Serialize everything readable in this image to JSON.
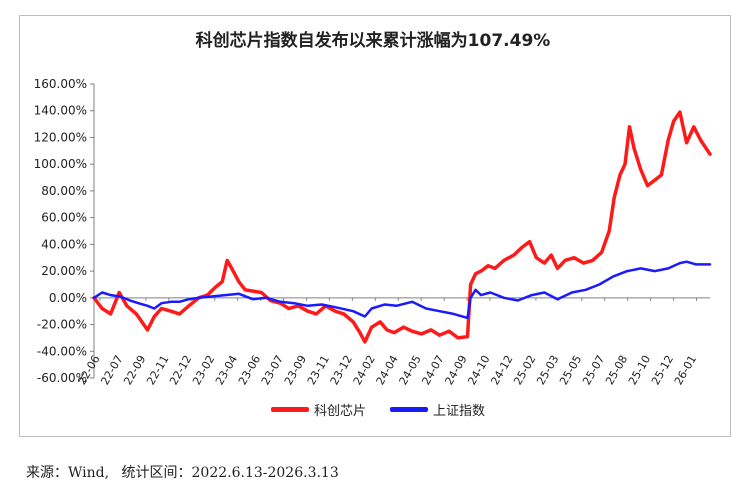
{
  "footer": {
    "source_label": "来源：",
    "source_value": "Wind,",
    "period_label": "统计区间：",
    "period_value": "2022.6.13-2026.3.13"
  },
  "colors": {
    "series_a": "#ff1a1a",
    "series_b": "#1a1aff",
    "axis": "#808080"
  },
  "chart_data": {
    "type": "line",
    "title": "科创芯片指数自发布以来累计涨幅为107.49%",
    "xlabel": "",
    "ylabel": "",
    "ylim": [
      -60,
      160
    ],
    "yticks": [
      "160.00%",
      "140.00%",
      "120.00%",
      "100.00%",
      "80.00%",
      "60.00%",
      "40.00%",
      "20.00%",
      "0.00%",
      "-20.00%",
      "-40.00%",
      "-60.00%"
    ],
    "ytick_values": [
      160,
      140,
      120,
      100,
      80,
      60,
      40,
      20,
      0,
      -20,
      -40,
      -60
    ],
    "xticks": [
      "22-06",
      "22-07",
      "22-09",
      "22-11",
      "22-12",
      "23-02",
      "23-04",
      "23-06",
      "23-07",
      "23-09",
      "23-11",
      "23-12",
      "24-02",
      "24-04",
      "24-05",
      "24-07",
      "24-09",
      "24-10",
      "24-12",
      "25-02",
      "25-03",
      "25-05",
      "25-07",
      "25-08",
      "25-10",
      "25-12",
      "26-01"
    ],
    "x_range": [
      "2022-06-13",
      "2026-03-13"
    ],
    "grid": false,
    "legend": "bottom",
    "series": [
      {
        "name": "科创芯片",
        "color": "#ff1a1a",
        "points": [
          [
            "2022-06-13",
            0
          ],
          [
            "2022-07-01",
            -8
          ],
          [
            "2022-07-20",
            -12
          ],
          [
            "2022-08-08",
            4
          ],
          [
            "2022-08-25",
            -6
          ],
          [
            "2022-09-15",
            -12
          ],
          [
            "2022-10-10",
            -24
          ],
          [
            "2022-10-25",
            -14
          ],
          [
            "2022-11-10",
            -8
          ],
          [
            "2022-12-01",
            -10
          ],
          [
            "2022-12-20",
            -12
          ],
          [
            "2023-01-10",
            -6
          ],
          [
            "2023-02-01",
            0
          ],
          [
            "2023-02-20",
            2
          ],
          [
            "2023-03-10",
            8
          ],
          [
            "2023-03-25",
            12
          ],
          [
            "2023-04-05",
            28
          ],
          [
            "2023-04-15",
            22
          ],
          [
            "2023-05-01",
            12
          ],
          [
            "2023-05-15",
            6
          ],
          [
            "2023-06-01",
            5
          ],
          [
            "2023-06-20",
            4
          ],
          [
            "2023-07-10",
            -2
          ],
          [
            "2023-08-01",
            -4
          ],
          [
            "2023-08-20",
            -8
          ],
          [
            "2023-09-10",
            -6
          ],
          [
            "2023-10-01",
            -10
          ],
          [
            "2023-10-20",
            -12
          ],
          [
            "2023-11-10",
            -6
          ],
          [
            "2023-12-01",
            -10
          ],
          [
            "2023-12-20",
            -12
          ],
          [
            "2024-01-10",
            -18
          ],
          [
            "2024-01-25",
            -26
          ],
          [
            "2024-02-05",
            -33
          ],
          [
            "2024-02-20",
            -22
          ],
          [
            "2024-03-10",
            -18
          ],
          [
            "2024-03-25",
            -24
          ],
          [
            "2024-04-10",
            -26
          ],
          [
            "2024-05-01",
            -22
          ],
          [
            "2024-05-20",
            -25
          ],
          [
            "2024-06-10",
            -27
          ],
          [
            "2024-07-01",
            -24
          ],
          [
            "2024-07-20",
            -28
          ],
          [
            "2024-08-10",
            -25
          ],
          [
            "2024-08-30",
            -30
          ],
          [
            "2024-09-20",
            -29
          ],
          [
            "2024-09-27",
            10
          ],
          [
            "2024-10-08",
            18
          ],
          [
            "2024-10-20",
            20
          ],
          [
            "2024-11-05",
            24
          ],
          [
            "2024-11-20",
            22
          ],
          [
            "2024-12-10",
            28
          ],
          [
            "2025-01-01",
            32
          ],
          [
            "2025-01-20",
            38
          ],
          [
            "2025-02-05",
            42
          ],
          [
            "2025-02-20",
            30
          ],
          [
            "2025-03-10",
            26
          ],
          [
            "2025-03-25",
            32
          ],
          [
            "2025-04-08",
            22
          ],
          [
            "2025-04-25",
            28
          ],
          [
            "2025-05-15",
            30
          ],
          [
            "2025-06-05",
            26
          ],
          [
            "2025-06-25",
            28
          ],
          [
            "2025-07-15",
            34
          ],
          [
            "2025-08-01",
            50
          ],
          [
            "2025-08-12",
            75
          ],
          [
            "2025-08-25",
            92
          ],
          [
            "2025-09-05",
            100
          ],
          [
            "2025-09-15",
            128
          ],
          [
            "2025-09-25",
            112
          ],
          [
            "2025-10-10",
            96
          ],
          [
            "2025-10-25",
            84
          ],
          [
            "2025-11-10",
            88
          ],
          [
            "2025-11-25",
            92
          ],
          [
            "2025-12-10",
            118
          ],
          [
            "2025-12-22",
            132
          ],
          [
            "2026-01-05",
            139
          ],
          [
            "2026-01-20",
            116
          ],
          [
            "2026-02-05",
            128
          ],
          [
            "2026-02-20",
            118
          ],
          [
            "2026-03-13",
            107.49
          ]
        ]
      },
      {
        "name": "上证指数",
        "color": "#1a1aff",
        "points": [
          [
            "2022-06-13",
            0
          ],
          [
            "2022-07-01",
            4
          ],
          [
            "2022-07-20",
            2
          ],
          [
            "2022-08-10",
            1
          ],
          [
            "2022-09-01",
            -2
          ],
          [
            "2022-09-20",
            -4
          ],
          [
            "2022-10-10",
            -6
          ],
          [
            "2022-10-25",
            -8
          ],
          [
            "2022-11-10",
            -4
          ],
          [
            "2022-12-01",
            -3
          ],
          [
            "2022-12-20",
            -3
          ],
          [
            "2023-01-10",
            -1
          ],
          [
            "2023-02-01",
            0
          ],
          [
            "2023-03-01",
            1
          ],
          [
            "2023-04-01",
            2
          ],
          [
            "2023-05-01",
            3
          ],
          [
            "2023-06-01",
            -1
          ],
          [
            "2023-07-01",
            0
          ],
          [
            "2023-08-01",
            -3
          ],
          [
            "2023-09-01",
            -4
          ],
          [
            "2023-10-01",
            -6
          ],
          [
            "2023-11-01",
            -5
          ],
          [
            "2023-12-01",
            -7
          ],
          [
            "2024-01-10",
            -10
          ],
          [
            "2024-02-05",
            -14
          ],
          [
            "2024-02-20",
            -8
          ],
          [
            "2024-03-20",
            -5
          ],
          [
            "2024-04-15",
            -6
          ],
          [
            "2024-05-20",
            -3
          ],
          [
            "2024-06-20",
            -8
          ],
          [
            "2024-07-20",
            -10
          ],
          [
            "2024-08-20",
            -12
          ],
          [
            "2024-09-20",
            -15
          ],
          [
            "2024-09-27",
            0
          ],
          [
            "2024-10-08",
            6
          ],
          [
            "2024-10-20",
            2
          ],
          [
            "2024-11-10",
            4
          ],
          [
            "2024-12-10",
            0
          ],
          [
            "2025-01-10",
            -2
          ],
          [
            "2025-02-10",
            2
          ],
          [
            "2025-03-10",
            4
          ],
          [
            "2025-04-08",
            -1
          ],
          [
            "2025-05-10",
            4
          ],
          [
            "2025-06-10",
            6
          ],
          [
            "2025-07-10",
            10
          ],
          [
            "2025-08-10",
            16
          ],
          [
            "2025-09-10",
            20
          ],
          [
            "2025-10-10",
            22
          ],
          [
            "2025-11-10",
            20
          ],
          [
            "2025-12-10",
            22
          ],
          [
            "2026-01-05",
            26
          ],
          [
            "2026-01-20",
            27
          ],
          [
            "2026-02-10",
            25
          ],
          [
            "2026-03-13",
            25
          ]
        ]
      }
    ]
  }
}
